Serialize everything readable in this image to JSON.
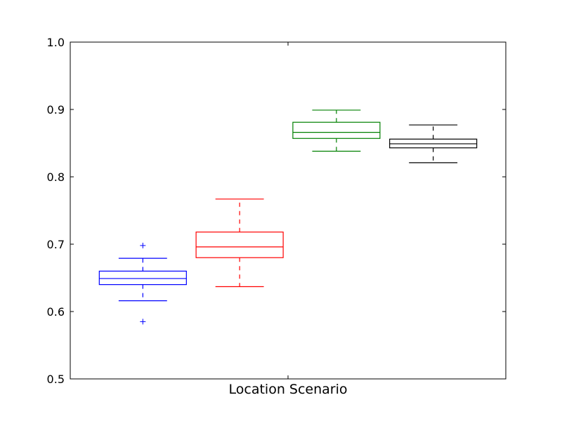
{
  "chart_data": {
    "type": "boxplot",
    "title": "",
    "xlabel": "Location Scenario",
    "ylabel": "",
    "ylim": [
      0.5,
      1.0
    ],
    "yticks": [
      0.5,
      0.6,
      0.7,
      0.8,
      0.9,
      1.0
    ],
    "ytick_labels": [
      "0.5",
      "0.6",
      "0.7",
      "0.8",
      "0.9",
      "1.0"
    ],
    "grid": false,
    "legend": "none",
    "series": [
      {
        "color": "#0000ff",
        "whisker_low": 0.616,
        "q1": 0.64,
        "median": 0.649,
        "q3": 0.66,
        "whisker_high": 0.679,
        "outliers": [
          0.698,
          0.585
        ]
      },
      {
        "color": "#ff0000",
        "whisker_low": 0.637,
        "q1": 0.68,
        "median": 0.696,
        "q3": 0.718,
        "whisker_high": 0.767,
        "outliers": []
      },
      {
        "color": "#008000",
        "whisker_low": 0.838,
        "q1": 0.857,
        "median": 0.866,
        "q3": 0.881,
        "whisker_high": 0.899,
        "outliers": []
      },
      {
        "color": "#000000",
        "whisker_low": 0.821,
        "q1": 0.843,
        "median": 0.849,
        "q3": 0.856,
        "whisker_high": 0.877,
        "outliers": []
      }
    ]
  }
}
